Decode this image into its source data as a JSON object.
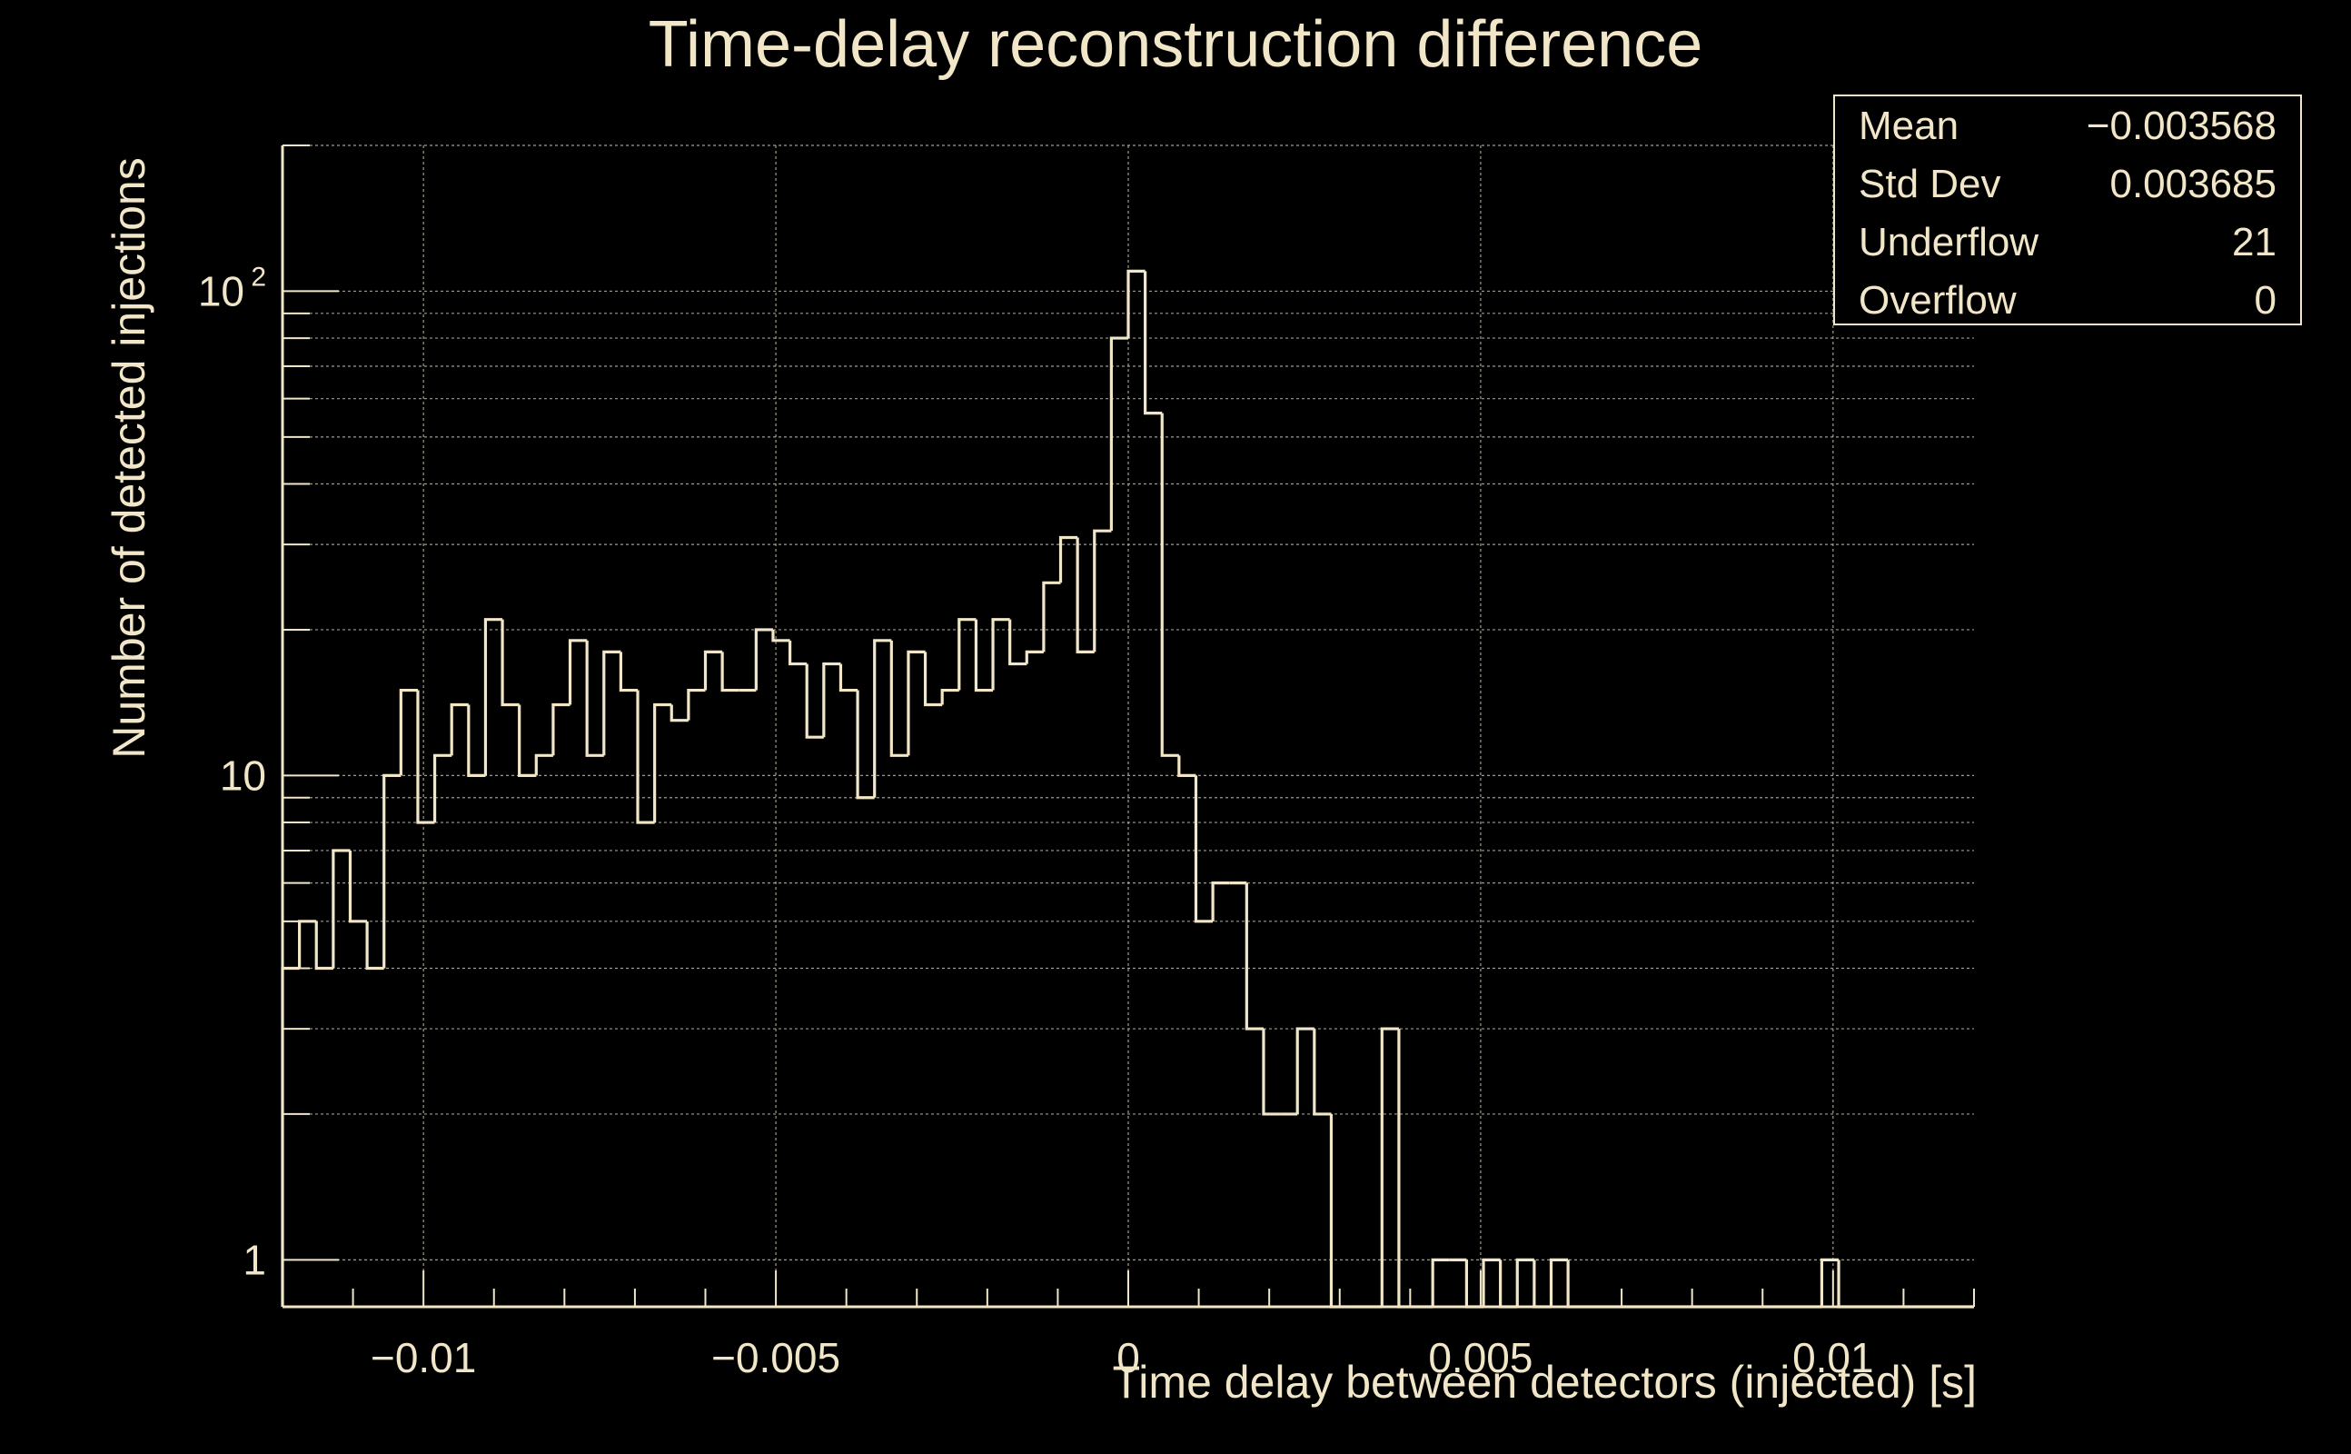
{
  "chart_data": {
    "type": "bar",
    "title": "Time-delay reconstruction difference",
    "xlabel": "Time delay between detectors (injected) [s]",
    "ylabel": "Number of detected injections",
    "xlim": [
      -0.012,
      0.012
    ],
    "ylim": [
      0.8,
      200
    ],
    "yscale": "log",
    "grid": true,
    "histtype": "step",
    "line_color": "#f2e6c8",
    "background": "#000000",
    "x_ticks": [
      {
        "value": -0.01,
        "label": "−0.01"
      },
      {
        "value": -0.005,
        "label": "−0.005"
      },
      {
        "value": 0,
        "label": "0"
      },
      {
        "value": 0.005,
        "label": "0.005"
      },
      {
        "value": 0.01,
        "label": "0.01"
      }
    ],
    "y_ticks": [
      {
        "value": 1,
        "label": "1"
      },
      {
        "value": 10,
        "label": "10"
      },
      {
        "value": 100,
        "label": "10",
        "sup": "2"
      }
    ],
    "bin_start": -0.012,
    "bin_width": 0.00024,
    "values": [
      4,
      5,
      4,
      7,
      5,
      4,
      10,
      15,
      8,
      11,
      14,
      10,
      21,
      14,
      10,
      11,
      14,
      19,
      11,
      18,
      15,
      8,
      14,
      13,
      15,
      18,
      15,
      15,
      20,
      19,
      17,
      12,
      17,
      15,
      9,
      19,
      11,
      18,
      14,
      15,
      21,
      15,
      21,
      17,
      18,
      25,
      31,
      18,
      32,
      80,
      110,
      56,
      11,
      10,
      5,
      6,
      6,
      3,
      2,
      2,
      3,
      2,
      0,
      0,
      0,
      3,
      0,
      0,
      1,
      1,
      0,
      1,
      0,
      1,
      0,
      1,
      0,
      0,
      0,
      0,
      0,
      0,
      0,
      0,
      0,
      0,
      0,
      0,
      0,
      0,
      0,
      1,
      0,
      0,
      0,
      0,
      0,
      0,
      0,
      0
    ]
  },
  "stats_box": {
    "rows": [
      {
        "key": "Mean",
        "value": "−0.003568"
      },
      {
        "key": "Std Dev",
        "value": "0.003685"
      },
      {
        "key": "Underflow",
        "value": "21"
      },
      {
        "key": "Overflow",
        "value": "0"
      }
    ]
  }
}
